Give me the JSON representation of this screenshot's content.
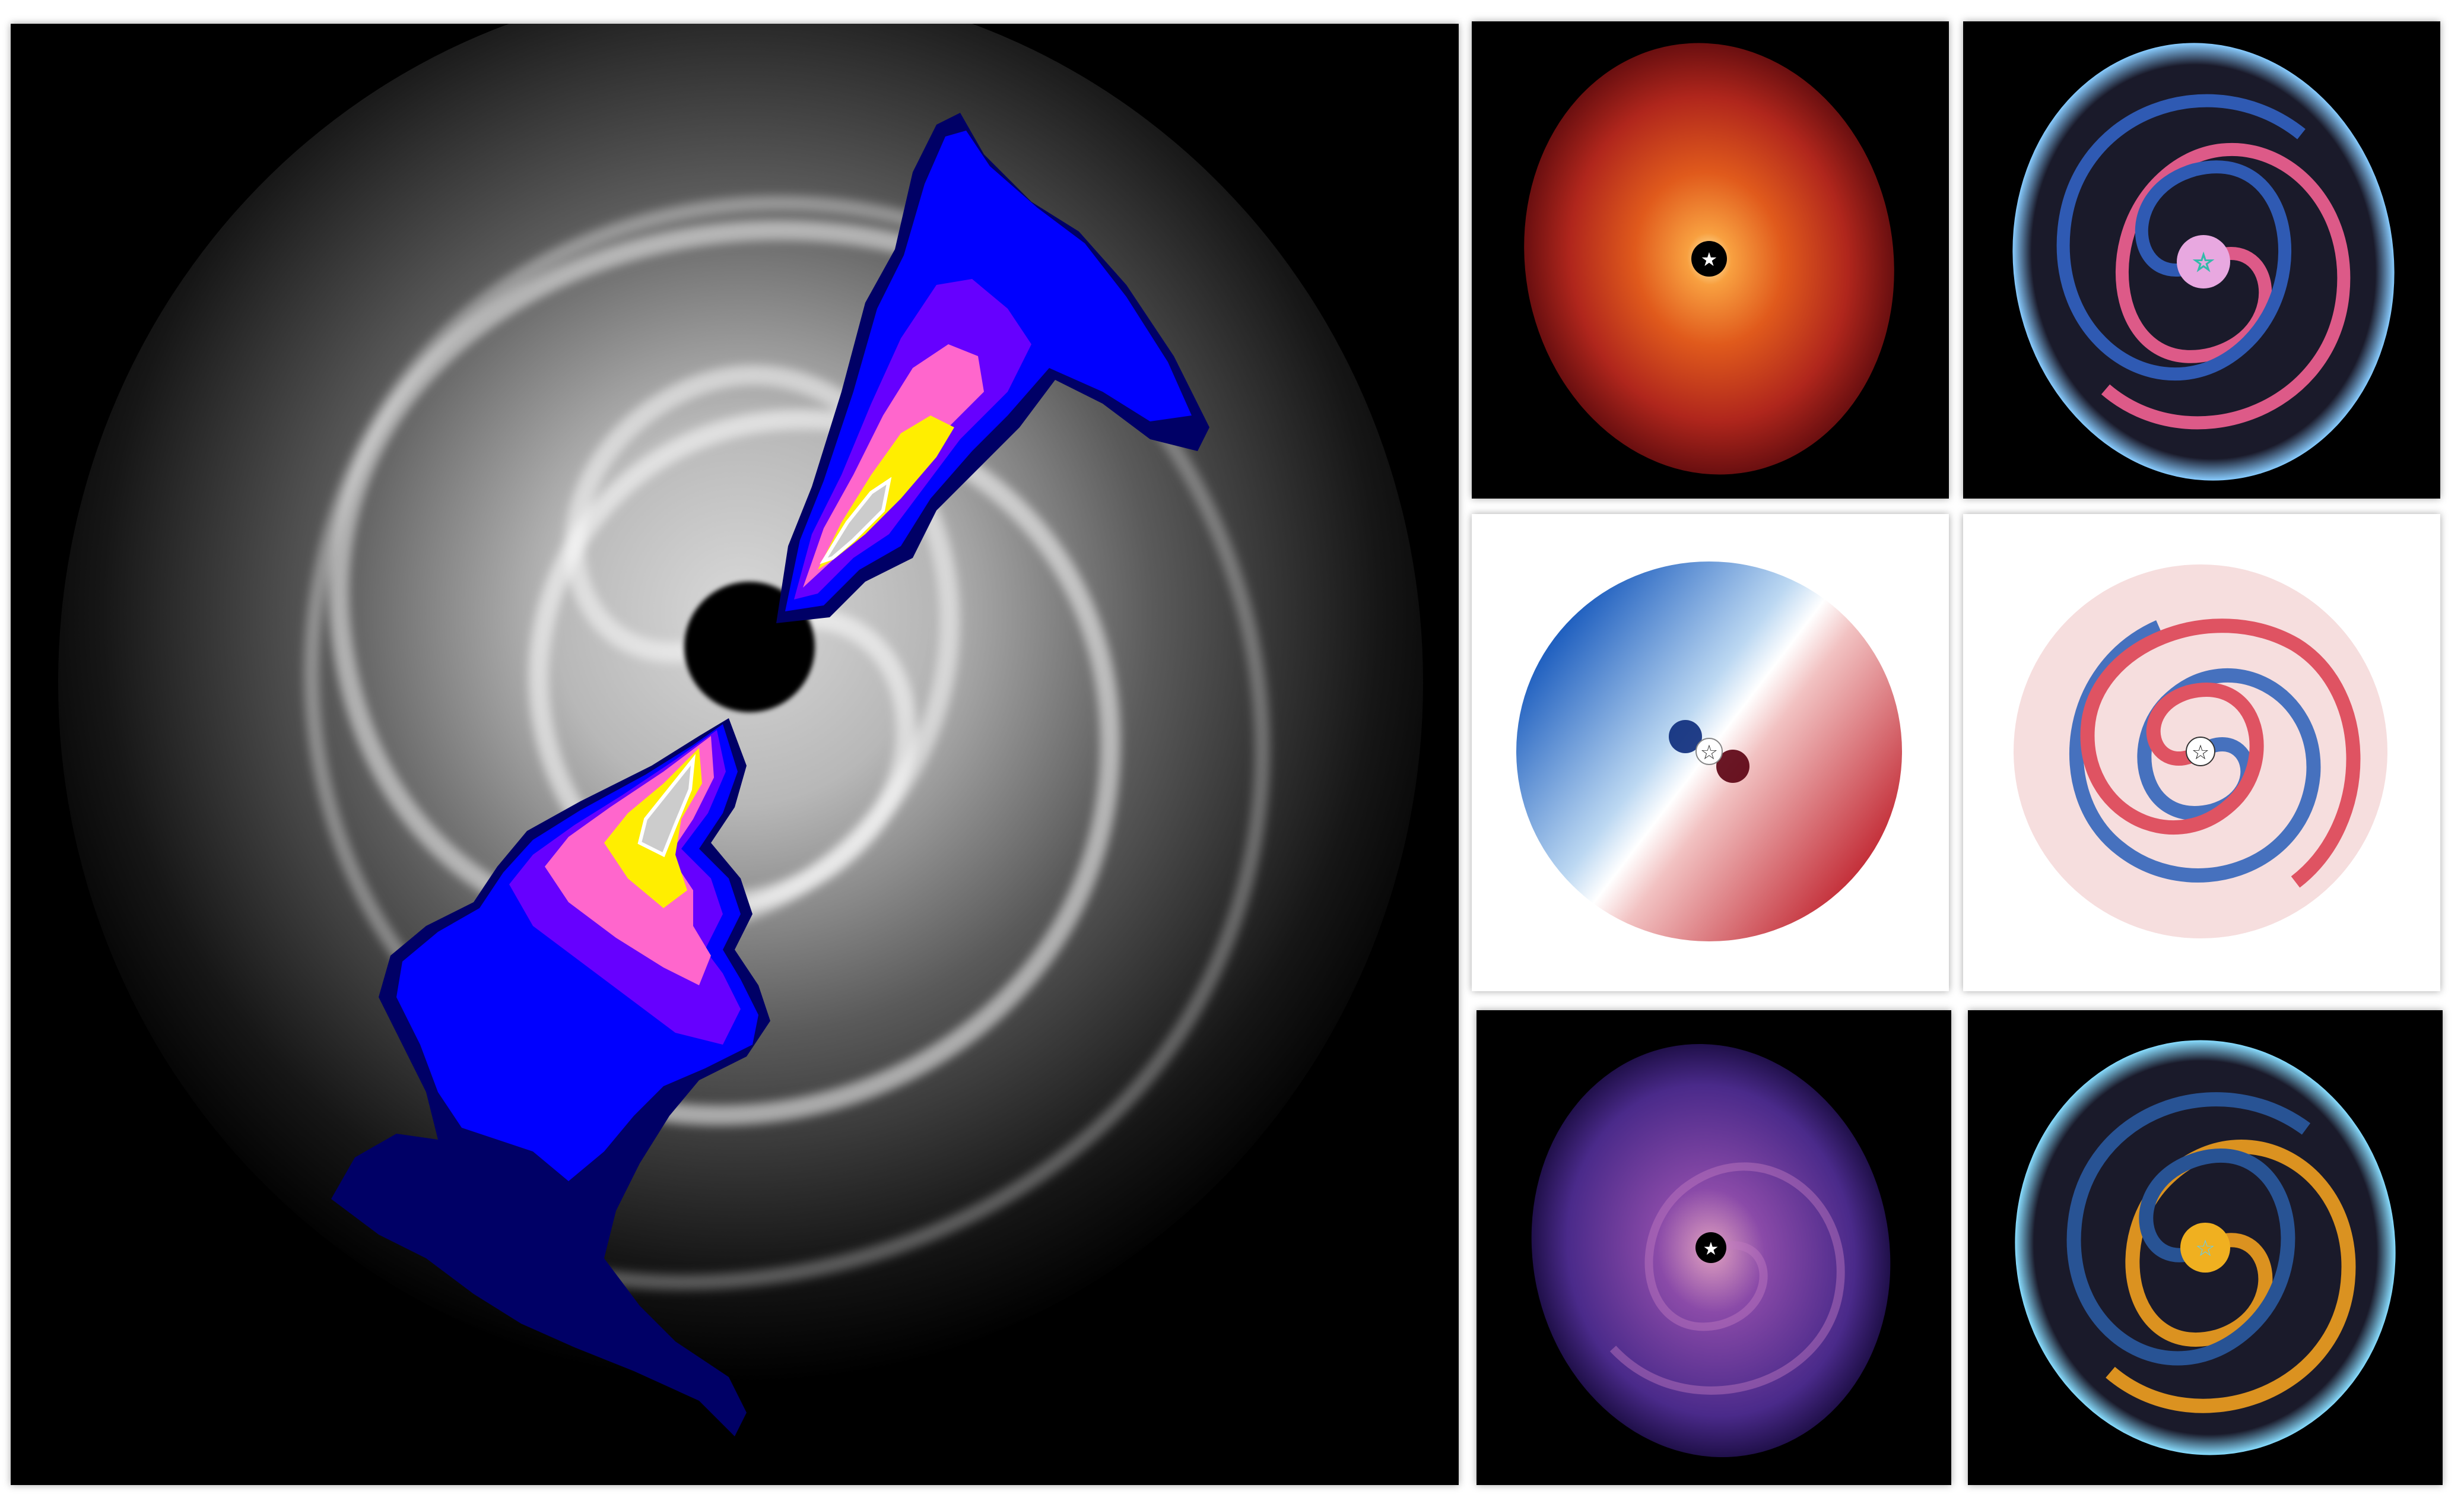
{
  "figure": {
    "background": "#ffffff",
    "main_panel": {
      "description_icon": "spiral-disk-with-outflow-icon",
      "colormap": [
        "#000000",
        "#ffffff"
      ],
      "outflow_colors": [
        "#000066",
        "#0000cc",
        "#0000ff",
        "#6600ff",
        "#ff66cc",
        "#ff3399",
        "#ffee00",
        "#ffffff",
        "#cccccc"
      ]
    },
    "panels": [
      {
        "id": "density-map",
        "icon": "star-icon",
        "colors": [
          "#000000",
          "#8b1a1a",
          "#e05a1c",
          "#ffd080"
        ]
      },
      {
        "id": "density-perturbation-map",
        "icon": "star-outline-icon",
        "colors": [
          "#000000",
          "#ff6699",
          "#3366cc",
          "#99ddff"
        ]
      },
      {
        "id": "velocity-map",
        "icon": "star-outline-icon",
        "colors": [
          "#0b3d91",
          "#ffffff",
          "#b3001b"
        ]
      },
      {
        "id": "velocity-residual-map",
        "icon": "star-outline-icon",
        "colors": [
          "#2255aa",
          "#ffffff",
          "#cc2233"
        ]
      },
      {
        "id": "temperature-map",
        "icon": "star-icon",
        "colors": [
          "#000000",
          "#4a2a8a",
          "#c07ac0"
        ]
      },
      {
        "id": "temperature-perturbation-map",
        "icon": "star-outline-icon",
        "colors": [
          "#000000",
          "#f0a020",
          "#2a5aa0",
          "#88ddff"
        ]
      }
    ]
  }
}
